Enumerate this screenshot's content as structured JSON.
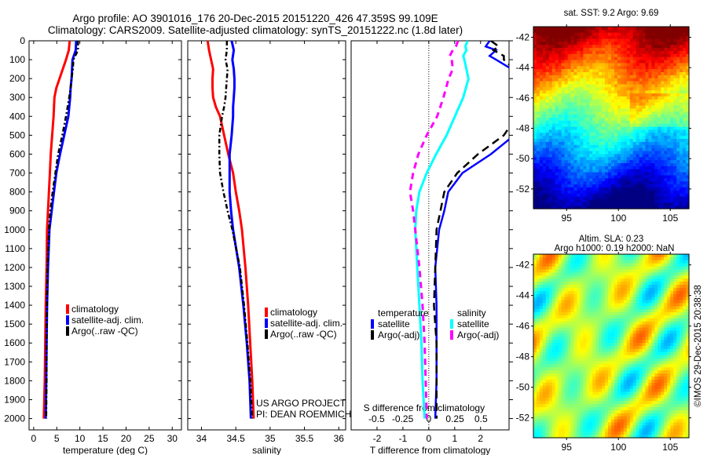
{
  "header": {
    "line1": "Argo profile: AO 3901016_176 20-Dec-2015 20151220_426 47.359S 99.109E",
    "line2": "Climatology: CARS2009. Satellite-adjusted climatology: synTS_20151222.nc (1.8d later)"
  },
  "colors": {
    "climatology": "#ff0000",
    "satellite": "#0000ff",
    "argo": "#000000",
    "salinity_satellite": "#00ffff",
    "salinity_argo": "#ff00ff"
  },
  "chart_data": [
    {
      "type": "line",
      "id": "temperature",
      "xlabel": "temperature (deg C)",
      "ylabel": "",
      "xlim": [
        -1,
        32
      ],
      "ylim": [
        2060,
        0
      ],
      "xticks": [
        0,
        5,
        10,
        15,
        20,
        25,
        30
      ],
      "yticks": [
        0,
        100,
        200,
        300,
        400,
        500,
        600,
        700,
        800,
        900,
        1000,
        1100,
        1200,
        1300,
        1400,
        1500,
        1600,
        1700,
        1800,
        1900,
        2000
      ],
      "legend": [
        "climatology",
        "satellite-adj. clim.",
        "Argo(..raw -QC)"
      ],
      "depth": [
        0,
        50,
        100,
        150,
        200,
        250,
        300,
        400,
        500,
        600,
        700,
        800,
        900,
        1000,
        1200,
        1400,
        1600,
        1800,
        2000
      ],
      "series": [
        {
          "name": "climatology",
          "values": [
            7.8,
            7.6,
            7.0,
            6.3,
            5.6,
            4.9,
            4.5,
            4.3,
            4.0,
            3.7,
            3.5,
            3.3,
            3.1,
            2.9,
            2.8,
            2.6,
            2.5,
            2.4,
            2.2
          ]
        },
        {
          "name": "satellite-adj. clim.",
          "values": [
            9.2,
            9.1,
            8.4,
            8.3,
            8.2,
            8.0,
            7.9,
            7.5,
            6.6,
            5.7,
            4.9,
            4.4,
            3.9,
            3.4,
            3.1,
            2.9,
            2.8,
            2.7,
            2.6
          ]
        },
        {
          "name": "Argo(..raw -QC)",
          "values": [
            9.6,
            9.6,
            8.6,
            8.5,
            8.2,
            8.0,
            7.7,
            7.0,
            6.2,
            5.3,
            4.7,
            4.1,
            3.6,
            3.3,
            3.0,
            2.9,
            2.8,
            2.8,
            2.7
          ]
        }
      ]
    },
    {
      "type": "line",
      "id": "salinity",
      "xlabel": "salinity",
      "xlim": [
        33.8,
        36.1
      ],
      "ylim": [
        2060,
        0
      ],
      "xticks": [
        34,
        34.5,
        35,
        35.5,
        36
      ],
      "legend": [
        "climatology",
        "satellite-adj. clim.",
        "Argo(..raw -QC)"
      ],
      "annotation": [
        "US ARGO PROJECT",
        "PI: DEAN ROEMMICH"
      ],
      "depth": [
        0,
        50,
        100,
        150,
        200,
        250,
        300,
        350,
        400,
        500,
        600,
        700,
        800,
        900,
        1000,
        1200,
        1400,
        1600,
        1800,
        2000
      ],
      "series": [
        {
          "name": "climatology",
          "values": [
            34.09,
            34.11,
            34.14,
            34.17,
            34.16,
            34.16,
            34.17,
            34.21,
            34.27,
            34.33,
            34.39,
            34.46,
            34.5,
            34.55,
            34.59,
            34.64,
            34.68,
            34.71,
            34.74,
            34.76
          ]
        },
        {
          "name": "satellite-adj. clim.",
          "values": [
            34.44,
            34.47,
            34.45,
            34.47,
            34.48,
            34.48,
            34.47,
            34.46,
            34.46,
            34.44,
            34.41,
            34.41,
            34.41,
            34.43,
            34.46,
            34.55,
            34.61,
            34.66,
            34.7,
            34.72
          ]
        },
        {
          "name": "Argo(..raw -QC)",
          "values": [
            34.37,
            34.37,
            34.35,
            34.38,
            34.37,
            34.36,
            34.35,
            34.33,
            34.3,
            34.26,
            34.26,
            34.27,
            34.32,
            34.38,
            34.45,
            34.56,
            34.62,
            34.67,
            34.71,
            34.74
          ]
        }
      ]
    },
    {
      "type": "line",
      "id": "difference",
      "xlabel": "T difference from climatology",
      "xlabel2": "S difference from climatology",
      "xlim": [
        -3,
        3.1
      ],
      "xticks": [
        -2,
        -1,
        0,
        1,
        2
      ],
      "xticks2": [
        -0.5,
        -0.25,
        0,
        0.25,
        0.5
      ],
      "ylim": [
        2060,
        0
      ],
      "legend_titles": [
        "temperature",
        "salinity"
      ],
      "legend": [
        "satellite",
        "Argo(-adj)",
        "satellite",
        "Argo(-adj)"
      ],
      "depth": [
        0,
        30,
        50,
        80,
        100,
        150,
        200,
        300,
        400,
        500,
        600,
        700,
        800,
        900,
        1000,
        1200,
        1400,
        1600,
        1800,
        2000
      ],
      "series": [
        {
          "name": "temperature satellite",
          "values": [
            2.35,
            2.2,
            2.6,
            2.35,
            2.6,
            3.2,
            3.6,
            3.6,
            3.5,
            3.3,
            2.4,
            1.3,
            0.75,
            0.6,
            0.4,
            0.25,
            0.3,
            0.3,
            0.3,
            0.25
          ]
        },
        {
          "name": "temperature Argo(-adj)",
          "values": [
            2.4,
            2.7,
            2.5,
            2.9,
            2.9,
            3.3,
            3.6,
            3.4,
            3.4,
            2.9,
            1.9,
            1.1,
            0.6,
            0.45,
            0.3,
            0.25,
            0.2,
            0.3,
            0.3,
            0.3
          ]
        },
        {
          "name": "salinity satellite",
          "values": [
            0.37,
            0.35,
            0.36,
            0.33,
            0.34,
            0.36,
            0.38,
            0.33,
            0.25,
            0.17,
            0.07,
            -0.02,
            -0.09,
            -0.12,
            -0.13,
            -0.11,
            -0.09,
            -0.07,
            -0.06,
            -0.04
          ]
        },
        {
          "name": "salinity Argo(-adj)",
          "values": [
            0.28,
            0.26,
            0.23,
            0.2,
            0.22,
            0.23,
            0.19,
            0.14,
            0.08,
            -0.02,
            -0.1,
            -0.15,
            -0.18,
            -0.15,
            -0.13,
            -0.09,
            -0.06,
            -0.04,
            -0.03,
            -0.02
          ]
        }
      ]
    },
    {
      "type": "heatmap",
      "id": "sst-map",
      "title": "sat. SST: 9.2 Argo: 9.69",
      "xlim": [
        91.8,
        106.8
      ],
      "ylim": [
        -53.3,
        -41.3
      ],
      "xticks": [
        95,
        100,
        105
      ],
      "yticks": [
        -42,
        -44,
        -46,
        -48,
        -50,
        -52
      ]
    },
    {
      "type": "heatmap",
      "id": "sla-map",
      "title": "Altim. SLA: 0.23",
      "subtitle": "Argo h1000: 0.19 h2000: NaN",
      "xlim": [
        91.8,
        106.8
      ],
      "ylim": [
        -53.3,
        -41.3
      ],
      "xticks": [
        95,
        100,
        105
      ],
      "yticks": [
        -42,
        -44,
        -46,
        -48,
        -50,
        -52
      ],
      "side_label": "©IMOS 29-Dec-2015 20:38:38"
    }
  ]
}
